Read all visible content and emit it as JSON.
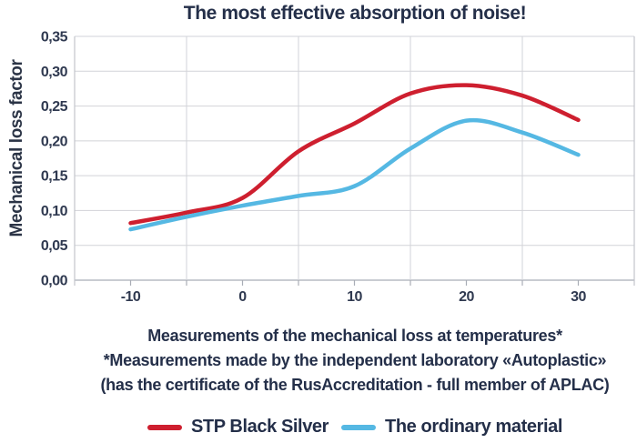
{
  "title": "The most effective absorption of noise!",
  "y_axis_label": "Mechanical loss factor",
  "footer": {
    "line1": "Measurements of the mechanical loss at temperatures*",
    "line2": "*Measurements made by the independent laboratory «Autoplastic»",
    "line3": "(has the certificate of the RusAccreditation - full member of APLAC)"
  },
  "legend": [
    {
      "label": "STP Black Silver",
      "color": "#ce1f2f"
    },
    {
      "label": "The ordinary material",
      "color": "#55b8e3"
    }
  ],
  "colors": {
    "title_text": "#242f49",
    "tick_text": "#2f3950",
    "grid_line": "#d2d3d8",
    "axis_line": "#a9adb6",
    "plot_border": "#c3c5cc",
    "red_series": "#ce1f2f",
    "blue_series": "#55b8e3",
    "background": "#ffffff"
  },
  "chart_data": {
    "type": "line",
    "x": [
      -10,
      -5,
      0,
      5,
      10,
      15,
      20,
      25,
      30
    ],
    "series": [
      {
        "name": "STP Black Silver",
        "color": "#ce1f2f",
        "values": [
          0.082,
          0.097,
          0.118,
          0.185,
          0.225,
          0.268,
          0.28,
          0.265,
          0.23
        ]
      },
      {
        "name": "The ordinary material",
        "color": "#55b8e3",
        "values": [
          0.073,
          0.091,
          0.107,
          0.121,
          0.135,
          0.189,
          0.229,
          0.212,
          0.18
        ]
      }
    ],
    "title": "The most effective absorption of noise!",
    "xlabel": "Measurements of the mechanical loss at temperatures*",
    "ylabel": "Mechanical loss factor",
    "xlim": [
      -15,
      35
    ],
    "ylim": [
      0,
      0.35
    ],
    "x_tick_labels": [
      "-10",
      "0",
      "10",
      "20",
      "30"
    ],
    "x_tick_values": [
      -10,
      0,
      10,
      20,
      30
    ],
    "y_tick_labels": [
      "0,35",
      "0,30",
      "0,25",
      "0,20",
      "0,15",
      "0,10",
      "0,05",
      "0,00"
    ],
    "y_tick_values": [
      0.35,
      0.3,
      0.25,
      0.2,
      0.15,
      0.1,
      0.05,
      0.0
    ],
    "x_gridlines": [
      -5,
      5,
      15,
      25
    ],
    "x_minor_ticks": [
      -10,
      -5,
      0,
      5,
      10,
      15,
      20,
      25,
      30
    ],
    "y_gridline_step": 0.05,
    "grid": true,
    "legend_position": "bottom"
  }
}
